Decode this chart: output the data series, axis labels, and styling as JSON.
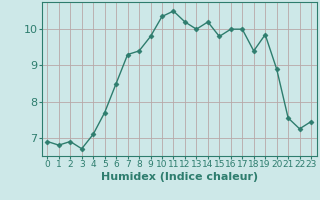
{
  "x": [
    0,
    1,
    2,
    3,
    4,
    5,
    6,
    7,
    8,
    9,
    10,
    11,
    12,
    13,
    14,
    15,
    16,
    17,
    18,
    19,
    20,
    21,
    22,
    23
  ],
  "y": [
    6.9,
    6.8,
    6.9,
    6.7,
    7.1,
    7.7,
    8.5,
    9.3,
    9.4,
    9.8,
    10.35,
    10.5,
    10.2,
    10.0,
    10.2,
    9.8,
    10.0,
    10.0,
    9.4,
    9.85,
    8.9,
    7.55,
    7.25,
    7.45
  ],
  "line_color": "#2e7d6e",
  "marker": "D",
  "marker_size": 2.5,
  "bg_color": "#cde8e8",
  "grid_color": "#b8a8a8",
  "xlabel": "Humidex (Indice chaleur)",
  "xlim": [
    -0.5,
    23.5
  ],
  "ylim": [
    6.5,
    10.75
  ],
  "yticks": [
    7,
    8,
    9,
    10
  ],
  "xticks": [
    0,
    1,
    2,
    3,
    4,
    5,
    6,
    7,
    8,
    9,
    10,
    11,
    12,
    13,
    14,
    15,
    16,
    17,
    18,
    19,
    20,
    21,
    22,
    23
  ],
  "tick_color": "#2e7d6e",
  "axis_color": "#2e7d6e",
  "xlabel_fontsize": 8,
  "ytick_fontsize": 8,
  "xtick_fontsize": 6.5
}
